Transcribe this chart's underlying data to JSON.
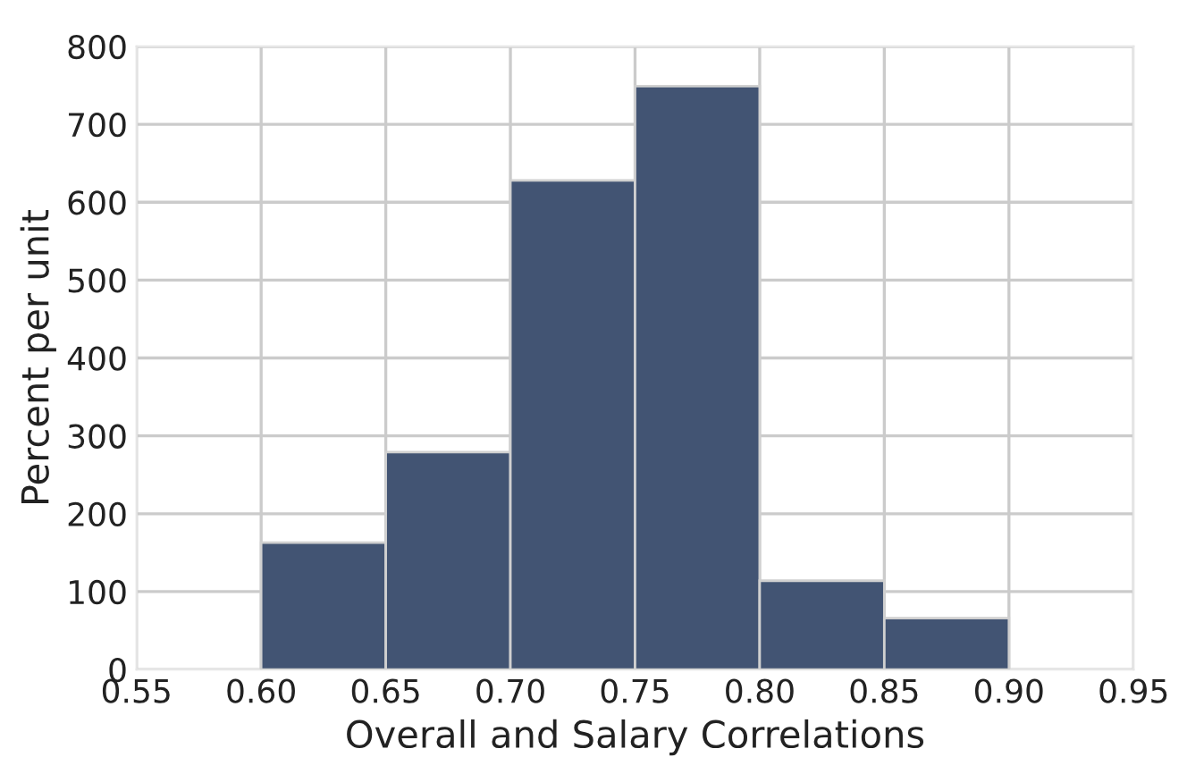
{
  "chart_data": {
    "type": "histogram",
    "xlabel": "Overall and Salary Correlations",
    "ylabel": "Percent per unit",
    "bins": [
      0.6,
      0.65,
      0.7,
      0.75,
      0.8,
      0.85,
      0.9
    ],
    "values": [
      163,
      279,
      628,
      749,
      114,
      66
    ],
    "color": "#425473",
    "xlim": [
      0.55,
      0.95
    ],
    "xticks": [
      0.55,
      {
        "value": 0.6,
        "label": "0.60"
      },
      0.65,
      {
        "value": 0.7,
        "label": "0.70"
      },
      0.75,
      {
        "value": 0.8,
        "label": "0.80"
      },
      0.85,
      {
        "value": 0.9,
        "label": "0.90"
      },
      0.95
    ],
    "ylim": [
      0,
      800
    ],
    "yticks": [
      0,
      100,
      200,
      300,
      400,
      500,
      600,
      700,
      800
    ],
    "grid": true
  }
}
